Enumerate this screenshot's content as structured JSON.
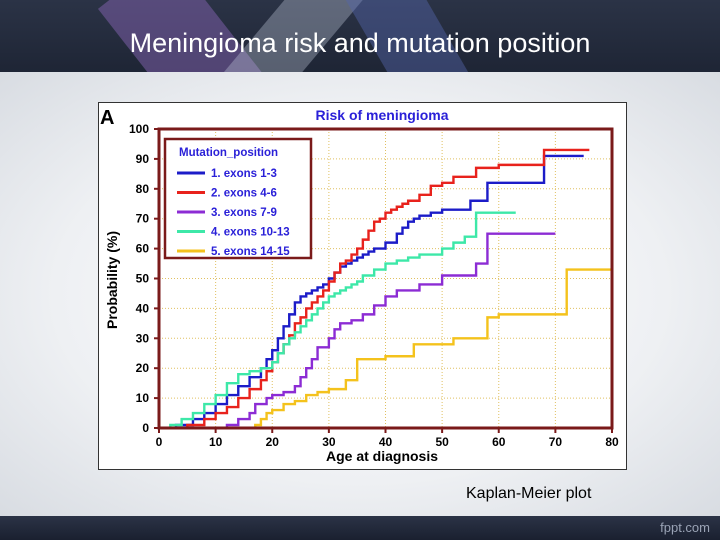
{
  "slide": {
    "title": "Meningioma risk and mutation position",
    "caption": "Kaplan-Meier plot",
    "brand": "fppt.com"
  },
  "chart_data": {
    "type": "line",
    "panel_label": "A",
    "title": "Risk of meningioma",
    "xlabel": "Age at diagnosis",
    "ylabel": "Probability (%)",
    "xlim": [
      0,
      80
    ],
    "ylim": [
      0,
      100
    ],
    "xticks": [
      0,
      10,
      20,
      30,
      40,
      50,
      60,
      70,
      80
    ],
    "yticks": [
      0,
      10,
      20,
      30,
      40,
      50,
      60,
      70,
      80,
      90,
      100
    ],
    "grid": true,
    "legend": {
      "title": "Mutation_position",
      "placement": "top-left"
    },
    "series": [
      {
        "name": "1. exons 1-3",
        "color": "#1c1cc8",
        "x": [
          0,
          3,
          6,
          8,
          10,
          12,
          14,
          16,
          18,
          19,
          20,
          21,
          22,
          23,
          24,
          25,
          26,
          27,
          28,
          29,
          30,
          31,
          32,
          33,
          34,
          35,
          36,
          37,
          38,
          40,
          42,
          43,
          44,
          45,
          46,
          48,
          50,
          55,
          58,
          68,
          75
        ],
        "y": [
          0,
          1,
          3,
          5,
          8,
          11,
          14,
          17,
          20,
          23,
          26,
          30,
          34,
          38,
          42,
          44,
          45,
          46,
          47,
          48,
          50,
          52,
          54,
          55,
          56,
          57,
          58,
          59,
          60,
          62,
          65,
          67,
          69,
          70,
          71,
          72,
          73,
          76,
          82,
          91,
          91
        ]
      },
      {
        "name": "2. exons 4-6",
        "color": "#e8221c",
        "x": [
          0,
          5,
          8,
          10,
          12,
          14,
          16,
          18,
          19,
          20,
          21,
          22,
          23,
          24,
          25,
          26,
          27,
          28,
          29,
          30,
          31,
          32,
          33,
          34,
          35,
          36,
          37,
          38,
          39,
          40,
          41,
          42,
          43,
          44,
          46,
          48,
          50,
          52,
          56,
          60,
          68,
          76
        ],
        "y": [
          0,
          1,
          3,
          5,
          7,
          10,
          13,
          16,
          19,
          22,
          25,
          28,
          31,
          35,
          37,
          40,
          42,
          44,
          46,
          49,
          52,
          55,
          56,
          58,
          60,
          63,
          66,
          69,
          70,
          72,
          73,
          74,
          75,
          76,
          78,
          81,
          82,
          84,
          87,
          88,
          93,
          93
        ]
      },
      {
        "name": "3. exons 7-9",
        "color": "#8c2cd4",
        "x": [
          0,
          12,
          14,
          16,
          17,
          19,
          20,
          22,
          24,
          25,
          26,
          27,
          28,
          30,
          31,
          32,
          34,
          36,
          38,
          40,
          42,
          46,
          50,
          56,
          58,
          70
        ],
        "y": [
          0,
          1,
          3,
          5,
          8,
          10,
          11,
          12,
          14,
          17,
          20,
          23,
          27,
          30,
          33,
          35,
          36,
          38,
          41,
          44,
          46,
          48,
          51,
          55,
          65,
          65
        ]
      },
      {
        "name": "4. exons 10-13",
        "color": "#3de8a8",
        "x": [
          0,
          2,
          4,
          6,
          8,
          10,
          12,
          14,
          16,
          18,
          20,
          21,
          22,
          23,
          24,
          25,
          26,
          27,
          28,
          29,
          30,
          31,
          32,
          33,
          34,
          35,
          36,
          38,
          40,
          42,
          44,
          46,
          50,
          52,
          54,
          56,
          63
        ],
        "y": [
          0,
          1,
          3,
          5,
          8,
          11,
          15,
          18,
          19,
          20,
          22,
          25,
          28,
          30,
          32,
          34,
          36,
          38,
          40,
          42,
          44,
          45,
          46,
          47,
          48,
          49,
          51,
          53,
          55,
          56,
          57,
          58,
          60,
          62,
          64,
          72,
          72
        ]
      },
      {
        "name": "5. exons 14-15",
        "color": "#f4c21c",
        "x": [
          0,
          17,
          18,
          19,
          20,
          22,
          24,
          26,
          28,
          30,
          33,
          35,
          40,
          45,
          52,
          58,
          60,
          72,
          80
        ],
        "y": [
          0,
          1,
          3,
          5,
          6,
          8,
          9,
          11,
          12,
          13,
          16,
          23,
          24,
          28,
          30,
          37,
          38,
          53,
          53
        ]
      }
    ]
  }
}
